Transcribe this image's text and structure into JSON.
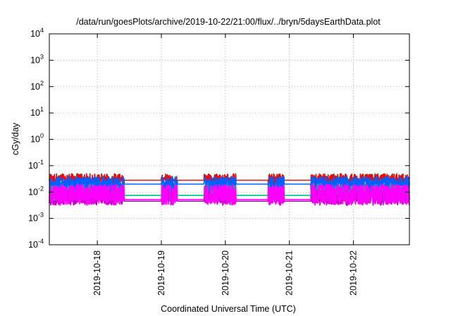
{
  "chart_data": {
    "type": "line",
    "title": "/data/run/goesPlots/archive/2019-10-22/21:00/flux/../bryn/5daysEarthData.plot",
    "xlabel": "Coordinated Universal Time (UTC)",
    "ylabel": "cGy/day",
    "y_scale": "log",
    "ylim": [
      0.0001,
      10000
    ],
    "xlim": [
      "2019-10-17 06:00",
      "2019-10-22 21:00"
    ],
    "grid": true,
    "legend": "none",
    "y_ticks": [
      {
        "value": 0.0001,
        "base": "10",
        "exp": "-4"
      },
      {
        "value": 0.001,
        "base": "10",
        "exp": "-3"
      },
      {
        "value": 0.01,
        "base": "10",
        "exp": "-2"
      },
      {
        "value": 0.1,
        "base": "10",
        "exp": "-1"
      },
      {
        "value": 1,
        "base": "10",
        "exp": "0"
      },
      {
        "value": 10,
        "base": "10",
        "exp": "1"
      },
      {
        "value": 100,
        "base": "10",
        "exp": "2"
      },
      {
        "value": 1000,
        "base": "10",
        "exp": "3"
      },
      {
        "value": 10000,
        "base": "10",
        "exp": "4"
      }
    ],
    "x_ticks": [
      {
        "value": "2019-10-18 00:00",
        "label": "2019-10-18"
      },
      {
        "value": "2019-10-19 00:00",
        "label": "2019-10-19"
      },
      {
        "value": "2019-10-20 00:00",
        "label": "2019-10-20"
      },
      {
        "value": "2019-10-21 00:00",
        "label": "2019-10-21"
      },
      {
        "value": "2019-10-22 00:00",
        "label": "2019-10-22"
      }
    ],
    "data_gaps": [
      [
        "2019-10-18 10:00",
        "2019-10-19 00:00"
      ],
      [
        "2019-10-19 06:00",
        "2019-10-19 16:00"
      ],
      [
        "2019-10-20 04:00",
        "2019-10-20 16:00"
      ],
      [
        "2019-10-20 22:00",
        "2019-10-21 08:00"
      ]
    ],
    "series": [
      {
        "color": "#ff0000",
        "base": 0.028,
        "spike_max": 0.05,
        "spike_min": 0.018
      },
      {
        "color": "#00c080",
        "base": 0.0075,
        "spike_max": 0.025,
        "spike_min": 0.005
      },
      {
        "color": "#0060ff",
        "base": 0.02,
        "spike_max": 0.04,
        "spike_min": 0.012
      },
      {
        "color": "#c000c0",
        "base": 0.0045,
        "spike_max": 0.012,
        "spike_min": 0.0035
      },
      {
        "color": "#ff00ff",
        "base": 0.0052,
        "spike_max": 0.02,
        "spike_min": 0.0038
      }
    ]
  }
}
